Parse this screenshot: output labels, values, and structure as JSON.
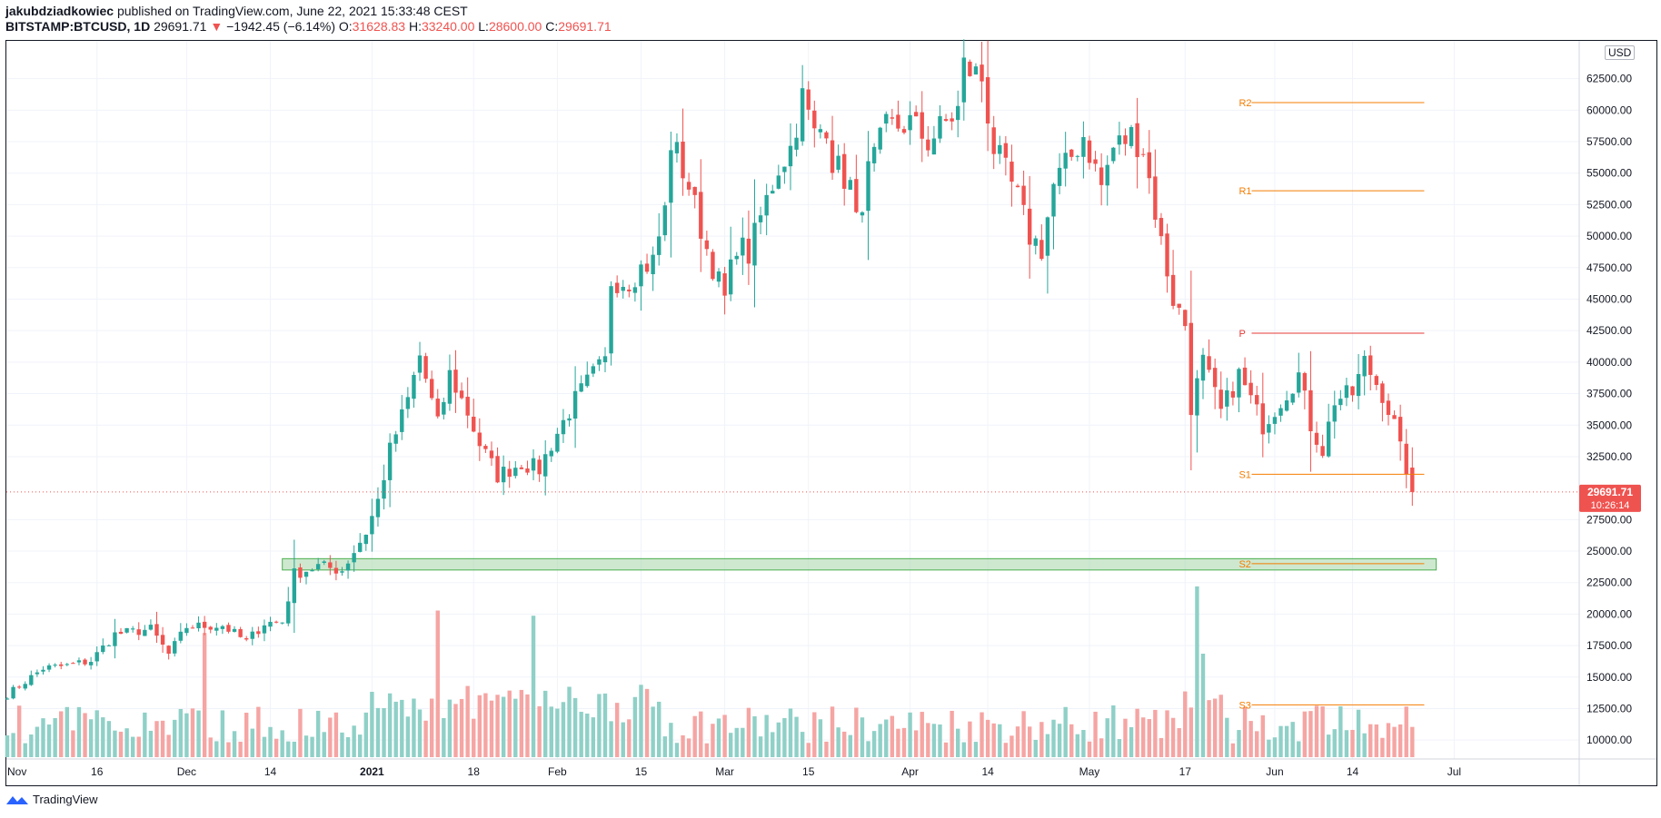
{
  "header": {
    "author": "jakubdziadkowiec",
    "published": "published on TradingView.com, June 22, 2021 15:33:48 CEST",
    "symbol": "BITSTAMP:BTCUSD, 1D",
    "last": "29691.71",
    "change_arrow": "▼",
    "change": "−1942.45 (−6.14%)",
    "o_label": "O:",
    "o": "31628.83",
    "h_label": "H:",
    "h": "33240.00",
    "l_label": "L:",
    "l": "28600.00",
    "c_label": "C:",
    "c": "29691.71"
  },
  "footer": {
    "brand": "TradingView"
  },
  "currency": "USD",
  "price_tag": {
    "price": "29691.71",
    "countdown": "10:26:14"
  },
  "colors": {
    "up": "#26a69a",
    "down": "#ef5350",
    "up_vol": "#8fd0c7",
    "down_vol": "#f5a5a3",
    "pivot": "#f57c00",
    "pivot_p": "#e53935",
    "zone": "#a5d6a7"
  },
  "chart_data": {
    "type": "candlestick",
    "symbol": "BITSTAMP:BTCUSD",
    "interval": "1D",
    "y_range": [
      8500,
      65500
    ],
    "y_ticks": [
      10000,
      12500,
      15000,
      17500,
      20000,
      22500,
      25000,
      27500,
      32500,
      35000,
      37500,
      40000,
      42500,
      45000,
      47500,
      50000,
      52500,
      55000,
      57500,
      60000,
      62500
    ],
    "y_tick_labels": [
      "10000.00",
      "12500.00",
      "15000.00",
      "17500.00",
      "20000.00",
      "22500.00",
      "25000.00",
      "27500.00",
      "32500.00",
      "35000.00",
      "37500.00",
      "40000.00",
      "42500.00",
      "45000.00",
      "47500.00",
      "50000.00",
      "52500.00",
      "55000.00",
      "57500.00",
      "60000.00",
      "62500.00"
    ],
    "x_ticks": [
      {
        "label": "Nov",
        "day": 0,
        "bold": false
      },
      {
        "label": "16",
        "day": 15,
        "bold": false
      },
      {
        "label": "Dec",
        "day": 30,
        "bold": false
      },
      {
        "label": "14",
        "day": 44,
        "bold": false
      },
      {
        "label": "2021",
        "day": 61,
        "bold": true
      },
      {
        "label": "18",
        "day": 78,
        "bold": false
      },
      {
        "label": "Feb",
        "day": 92,
        "bold": false
      },
      {
        "label": "15",
        "day": 106,
        "bold": false
      },
      {
        "label": "Mar",
        "day": 120,
        "bold": false
      },
      {
        "label": "15",
        "day": 134,
        "bold": false
      },
      {
        "label": "Apr",
        "day": 151,
        "bold": false
      },
      {
        "label": "14",
        "day": 164,
        "bold": false
      },
      {
        "label": "May",
        "day": 181,
        "bold": false
      },
      {
        "label": "17",
        "day": 197,
        "bold": false
      },
      {
        "label": "Jun",
        "day": 212,
        "bold": false
      },
      {
        "label": "14",
        "day": 225,
        "bold": false
      },
      {
        "label": "Jul",
        "day": 242,
        "bold": false
      }
    ],
    "last_price": 29691.71,
    "pivots": [
      {
        "label": "R2",
        "value": 60600,
        "color": "#f57c00"
      },
      {
        "label": "R1",
        "value": 53600,
        "color": "#f57c00"
      },
      {
        "label": "P",
        "value": 42300,
        "color": "#e53935"
      },
      {
        "label": "S1",
        "value": 31100,
        "color": "#f57c00"
      },
      {
        "label": "S2",
        "value": 24000,
        "color": "#f57c00"
      },
      {
        "label": "S3",
        "value": 12800,
        "color": "#f57c00"
      }
    ],
    "pivot_span_days": [
      206,
      237
    ],
    "zone": {
      "from_day": 46,
      "to_day": 239,
      "low": 23500,
      "high": 24400
    },
    "anchors": [
      [
        0,
        13600
      ],
      [
        6,
        15700
      ],
      [
        10,
        15900
      ],
      [
        14,
        16300
      ],
      [
        18,
        18400
      ],
      [
        24,
        18800
      ],
      [
        27,
        16800
      ],
      [
        30,
        19000
      ],
      [
        36,
        19100
      ],
      [
        40,
        17800
      ],
      [
        43,
        19300
      ],
      [
        46,
        19400
      ],
      [
        48,
        23200
      ],
      [
        52,
        23800
      ],
      [
        56,
        23500
      ],
      [
        60,
        26500
      ],
      [
        62,
        29000
      ],
      [
        64,
        33000
      ],
      [
        67,
        37000
      ],
      [
        69,
        40500
      ],
      [
        72,
        35000
      ],
      [
        74,
        39000
      ],
      [
        77,
        36000
      ],
      [
        79,
        33500
      ],
      [
        82,
        31000
      ],
      [
        86,
        32000
      ],
      [
        89,
        31500
      ],
      [
        91,
        33500
      ],
      [
        95,
        37000
      ],
      [
        98,
        39000
      ],
      [
        100,
        40000
      ],
      [
        101,
        46500
      ],
      [
        104,
        46500
      ],
      [
        106,
        47500
      ],
      [
        108,
        48000
      ],
      [
        110,
        52000
      ],
      [
        111,
        57500
      ],
      [
        112,
        56500
      ],
      [
        114,
        54000
      ],
      [
        117,
        49000
      ],
      [
        120,
        45000
      ],
      [
        122,
        49500
      ],
      [
        124,
        48500
      ],
      [
        126,
        51500
      ],
      [
        129,
        55500
      ],
      [
        131,
        57000
      ],
      [
        133,
        61000
      ],
      [
        135,
        58000
      ],
      [
        137,
        59000
      ],
      [
        138,
        56000
      ],
      [
        141,
        54000
      ],
      [
        142,
        51000
      ],
      [
        144,
        55000
      ],
      [
        147,
        58500
      ],
      [
        151,
        59000
      ],
      [
        154,
        57500
      ],
      [
        157,
        59000
      ],
      [
        159,
        60000
      ],
      [
        160,
        63500
      ],
      [
        163,
        62500
      ],
      [
        165,
        57000
      ],
      [
        167,
        55000
      ],
      [
        169,
        53000
      ],
      [
        171,
        50000
      ],
      [
        173,
        49000
      ],
      [
        175,
        54000
      ],
      [
        177,
        55500
      ],
      [
        180,
        58000
      ],
      [
        183,
        54000
      ],
      [
        185,
        57000
      ],
      [
        188,
        58000
      ],
      [
        190,
        57000
      ],
      [
        193,
        49500
      ],
      [
        195,
        45000
      ],
      [
        197,
        43000
      ],
      [
        198,
        36500
      ],
      [
        200,
        40000
      ],
      [
        203,
        36000
      ],
      [
        206,
        39000
      ],
      [
        210,
        35000
      ],
      [
        213,
        37000
      ],
      [
        216,
        39000
      ],
      [
        218,
        35000
      ],
      [
        220,
        33000
      ],
      [
        222,
        37000
      ],
      [
        225,
        37500
      ],
      [
        227,
        40000
      ],
      [
        230,
        37500
      ],
      [
        232,
        35000
      ],
      [
        233,
        33000
      ],
      [
        234,
        31600
      ],
      [
        235,
        29692
      ]
    ],
    "last_day": 235,
    "volume_max": 20000
  }
}
